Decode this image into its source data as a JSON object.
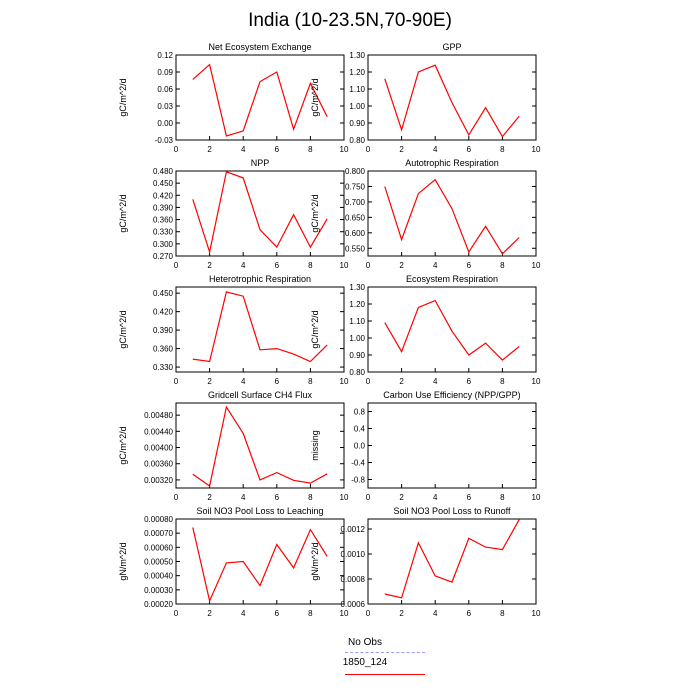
{
  "title": "India (10-23.5N,70-90E)",
  "legend": {
    "items": [
      {
        "label": "No Obs",
        "color": "#9999ff",
        "dash": true
      },
      {
        "label": "1850_124",
        "color": "#ff0000",
        "dash": false
      }
    ]
  },
  "colors": {
    "series": "#ff0000",
    "axis": "#000000"
  },
  "chart_data": [
    {
      "type": "line",
      "title": "Net Ecosystem Exchange",
      "xlabel": "",
      "ylabel": "gC/m^2/d",
      "xlim": [
        0,
        10
      ],
      "ylim": [
        -0.03,
        0.12
      ],
      "xticks": [
        "0",
        "2",
        "4",
        "6",
        "8",
        "10"
      ],
      "yticks": [
        "-0.03",
        "0.00",
        "0.03",
        "0.06",
        "0.09",
        "0.12"
      ],
      "series": [
        {
          "x": [
            1,
            2,
            3,
            4,
            5,
            6,
            7,
            8,
            9
          ],
          "values": [
            0.077,
            0.103,
            -0.023,
            -0.014,
            0.073,
            0.09,
            -0.011,
            0.07,
            0.011
          ]
        }
      ]
    },
    {
      "type": "line",
      "title": "GPP",
      "xlabel": "",
      "ylabel": "gC/m^2/d",
      "xlim": [
        0,
        10
      ],
      "ylim": [
        0.8,
        1.3
      ],
      "xticks": [
        "0",
        "2",
        "4",
        "6",
        "8",
        "10"
      ],
      "yticks": [
        "0.80",
        "0.90",
        "1.00",
        "1.10",
        "1.20",
        "1.30"
      ],
      "series": [
        {
          "x": [
            1,
            2,
            3,
            4,
            5,
            6,
            7,
            8,
            9
          ],
          "values": [
            1.16,
            0.86,
            1.2,
            1.24,
            1.02,
            0.83,
            0.99,
            0.82,
            0.94
          ]
        }
      ]
    },
    {
      "type": "line",
      "title": "NPP",
      "xlabel": "",
      "ylabel": "gC/m^2/d",
      "xlim": [
        0,
        10
      ],
      "ylim": [
        0.27,
        0.48
      ],
      "xticks": [
        "0",
        "2",
        "4",
        "6",
        "8",
        "10"
      ],
      "yticks": [
        "0.270",
        "0.300",
        "0.330",
        "0.360",
        "0.390",
        "0.420",
        "0.450",
        "0.480"
      ],
      "series": [
        {
          "x": [
            1,
            2,
            3,
            4,
            5,
            6,
            7,
            8,
            9
          ],
          "values": [
            0.41,
            0.28,
            0.478,
            0.463,
            0.335,
            0.292,
            0.372,
            0.292,
            0.362
          ]
        }
      ]
    },
    {
      "type": "line",
      "title": "Autotrophic Respiration",
      "xlabel": "",
      "ylabel": "gC/m^2/d",
      "xlim": [
        0,
        10
      ],
      "ylim": [
        0.525,
        0.8
      ],
      "xticks": [
        "0",
        "2",
        "4",
        "6",
        "8",
        "10"
      ],
      "yticks": [
        "0.550",
        "0.600",
        "0.650",
        "0.700",
        "0.750",
        "0.800"
      ],
      "series": [
        {
          "x": [
            1,
            2,
            3,
            4,
            5,
            6,
            7,
            8,
            9
          ],
          "values": [
            0.75,
            0.578,
            0.727,
            0.772,
            0.678,
            0.538,
            0.621,
            0.532,
            0.585
          ]
        }
      ]
    },
    {
      "type": "line",
      "title": "Heterotrophic Respiration",
      "xlabel": "",
      "ylabel": "gC/m^2/d",
      "xlim": [
        0,
        10
      ],
      "ylim": [
        0.322,
        0.46
      ],
      "xticks": [
        "0",
        "2",
        "4",
        "6",
        "8",
        "10"
      ],
      "yticks": [
        "0.330",
        "0.360",
        "0.390",
        "0.420",
        "0.450"
      ],
      "series": [
        {
          "x": [
            1,
            2,
            3,
            4,
            5,
            6,
            7,
            8,
            9
          ],
          "values": [
            0.343,
            0.339,
            0.452,
            0.445,
            0.358,
            0.36,
            0.351,
            0.339,
            0.366
          ]
        }
      ]
    },
    {
      "type": "line",
      "title": "Ecosystem Respiration",
      "xlabel": "",
      "ylabel": "gC/m^2/d",
      "xlim": [
        0,
        10
      ],
      "ylim": [
        0.8,
        1.3
      ],
      "xticks": [
        "0",
        "2",
        "4",
        "6",
        "8",
        "10"
      ],
      "yticks": [
        "0.80",
        "0.90",
        "1.00",
        "1.10",
        "1.20",
        "1.30"
      ],
      "series": [
        {
          "x": [
            1,
            2,
            3,
            4,
            5,
            6,
            7,
            8,
            9
          ],
          "values": [
            1.09,
            0.92,
            1.18,
            1.22,
            1.04,
            0.9,
            0.97,
            0.87,
            0.95
          ]
        }
      ]
    },
    {
      "type": "line",
      "title": "Gridcell Surface CH4 Flux",
      "xlabel": "",
      "ylabel": "gC/m^2/d",
      "xlim": [
        0,
        10
      ],
      "ylim": [
        0.003,
        0.0051
      ],
      "xticks": [
        "0",
        "2",
        "4",
        "6",
        "8",
        "10"
      ],
      "yticks": [
        "0.00320",
        "0.00360",
        "0.00400",
        "0.00440",
        "0.00480"
      ],
      "series": [
        {
          "x": [
            1,
            2,
            3,
            4,
            5,
            6,
            7,
            8,
            9
          ],
          "values": [
            0.00334,
            0.00305,
            0.005,
            0.00435,
            0.0032,
            0.00338,
            0.00319,
            0.00312,
            0.00335
          ]
        }
      ]
    },
    {
      "type": "line",
      "title": "Carbon Use Efficiency (NPP/GPP)",
      "xlabel": "",
      "ylabel": "missing",
      "xlim": [
        0,
        10
      ],
      "ylim": [
        -1.0,
        1.0
      ],
      "xticks": [
        "0",
        "2",
        "4",
        "6",
        "8",
        "10"
      ],
      "yticks": [
        "-0.8",
        "-0.4",
        "0.0",
        "0.4",
        "0.8"
      ],
      "series": []
    },
    {
      "type": "line",
      "title": "Soil NO3 Pool Loss to Leaching",
      "xlabel": "",
      "ylabel": "gN/m^2/d",
      "xlim": [
        0,
        10
      ],
      "ylim": [
        0.0002,
        0.0008
      ],
      "xticks": [
        "0",
        "2",
        "4",
        "6",
        "8",
        "10"
      ],
      "yticks": [
        "0.00020",
        "0.00030",
        "0.00040",
        "0.00050",
        "0.00060",
        "0.00070",
        "0.00080"
      ],
      "series": [
        {
          "x": [
            1,
            2,
            3,
            4,
            5,
            6,
            7,
            8,
            9
          ],
          "values": [
            0.00074,
            0.000222,
            0.00049,
            0.0005,
            0.00033,
            0.00062,
            0.000455,
            0.000725,
            0.000535
          ]
        }
      ]
    },
    {
      "type": "line",
      "title": "Soil NO3 Pool Loss to Runoff",
      "xlabel": "",
      "ylabel": "gN/m^2/d",
      "xlim": [
        0,
        10
      ],
      "ylim": [
        0.0006,
        0.00128
      ],
      "xticks": [
        "0",
        "2",
        "4",
        "6",
        "8",
        "10"
      ],
      "yticks": [
        "0.0006",
        "0.0008",
        "0.0010",
        "0.0012"
      ],
      "series": [
        {
          "x": [
            1,
            2,
            3,
            4,
            5,
            6,
            7,
            8,
            9
          ],
          "values": [
            0.00068,
            0.00065,
            0.00109,
            0.000825,
            0.000775,
            0.001125,
            0.001055,
            0.001035,
            0.001275
          ]
        }
      ]
    }
  ]
}
